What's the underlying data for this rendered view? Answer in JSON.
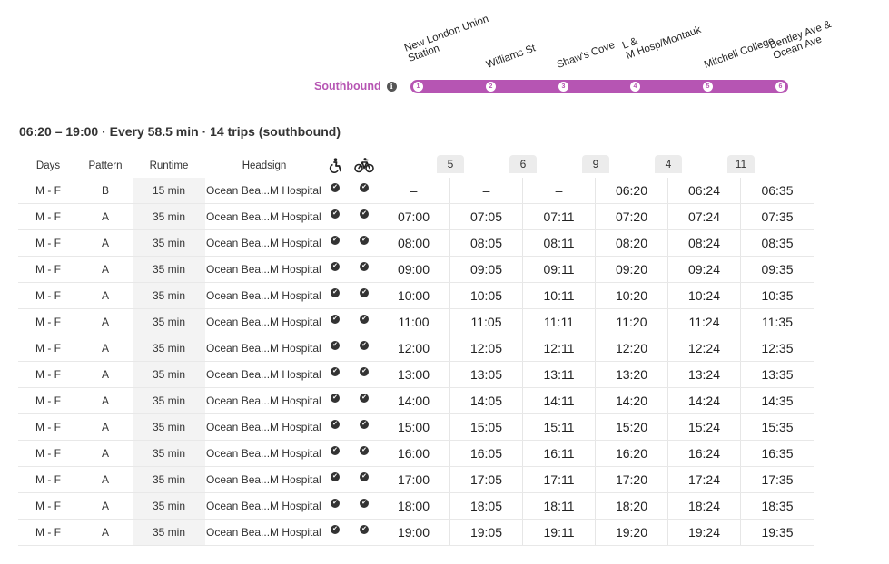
{
  "route": {
    "direction": "Southbound",
    "stops": [
      {
        "number": "1",
        "name_line1": "New London Union",
        "name_line2": "Station"
      },
      {
        "number": "2",
        "name_line1": "Williams St",
        "name_line2": ""
      },
      {
        "number": "3",
        "name_line1": "Shaw's Cove",
        "name_line2": ""
      },
      {
        "number": "4",
        "name_line1": "L &",
        "name_line2": "M Hosp/Montauk"
      },
      {
        "number": "5",
        "name_line1": "Mitchell College",
        "name_line2": ""
      },
      {
        "number": "6",
        "name_line1": "Bentley Ave &",
        "name_line2": "Ocean Ave"
      }
    ]
  },
  "summary": "06:20 – 19:00 · Every 58.5 min · 14 trips (southbound)",
  "table": {
    "headers": {
      "days": "Days",
      "pattern": "Pattern",
      "runtime": "Runtime",
      "headsign": "Headsign"
    },
    "stop_columns": [
      "",
      "5",
      "6",
      "9",
      "4",
      "11"
    ],
    "colors": {
      "accent": "#b655b3"
    },
    "rows": [
      {
        "days": "M - F",
        "pattern": "B",
        "runtime": "15 min",
        "headsign": "Ocean Bea...M Hospital",
        "times": [
          "–",
          "–",
          "–",
          "06:20",
          "06:24",
          "06:35"
        ]
      },
      {
        "days": "M - F",
        "pattern": "A",
        "runtime": "35 min",
        "headsign": "Ocean Bea...M Hospital",
        "times": [
          "07:00",
          "07:05",
          "07:11",
          "07:20",
          "07:24",
          "07:35"
        ]
      },
      {
        "days": "M - F",
        "pattern": "A",
        "runtime": "35 min",
        "headsign": "Ocean Bea...M Hospital",
        "times": [
          "08:00",
          "08:05",
          "08:11",
          "08:20",
          "08:24",
          "08:35"
        ]
      },
      {
        "days": "M - F",
        "pattern": "A",
        "runtime": "35 min",
        "headsign": "Ocean Bea...M Hospital",
        "times": [
          "09:00",
          "09:05",
          "09:11",
          "09:20",
          "09:24",
          "09:35"
        ]
      },
      {
        "days": "M - F",
        "pattern": "A",
        "runtime": "35 min",
        "headsign": "Ocean Bea...M Hospital",
        "times": [
          "10:00",
          "10:05",
          "10:11",
          "10:20",
          "10:24",
          "10:35"
        ]
      },
      {
        "days": "M - F",
        "pattern": "A",
        "runtime": "35 min",
        "headsign": "Ocean Bea...M Hospital",
        "times": [
          "11:00",
          "11:05",
          "11:11",
          "11:20",
          "11:24",
          "11:35"
        ]
      },
      {
        "days": "M - F",
        "pattern": "A",
        "runtime": "35 min",
        "headsign": "Ocean Bea...M Hospital",
        "times": [
          "12:00",
          "12:05",
          "12:11",
          "12:20",
          "12:24",
          "12:35"
        ]
      },
      {
        "days": "M - F",
        "pattern": "A",
        "runtime": "35 min",
        "headsign": "Ocean Bea...M Hospital",
        "times": [
          "13:00",
          "13:05",
          "13:11",
          "13:20",
          "13:24",
          "13:35"
        ]
      },
      {
        "days": "M - F",
        "pattern": "A",
        "runtime": "35 min",
        "headsign": "Ocean Bea...M Hospital",
        "times": [
          "14:00",
          "14:05",
          "14:11",
          "14:20",
          "14:24",
          "14:35"
        ]
      },
      {
        "days": "M - F",
        "pattern": "A",
        "runtime": "35 min",
        "headsign": "Ocean Bea...M Hospital",
        "times": [
          "15:00",
          "15:05",
          "15:11",
          "15:20",
          "15:24",
          "15:35"
        ]
      },
      {
        "days": "M - F",
        "pattern": "A",
        "runtime": "35 min",
        "headsign": "Ocean Bea...M Hospital",
        "times": [
          "16:00",
          "16:05",
          "16:11",
          "16:20",
          "16:24",
          "16:35"
        ]
      },
      {
        "days": "M - F",
        "pattern": "A",
        "runtime": "35 min",
        "headsign": "Ocean Bea...M Hospital",
        "times": [
          "17:00",
          "17:05",
          "17:11",
          "17:20",
          "17:24",
          "17:35"
        ]
      },
      {
        "days": "M - F",
        "pattern": "A",
        "runtime": "35 min",
        "headsign": "Ocean Bea...M Hospital",
        "times": [
          "18:00",
          "18:05",
          "18:11",
          "18:20",
          "18:24",
          "18:35"
        ]
      },
      {
        "days": "M - F",
        "pattern": "A",
        "runtime": "35 min",
        "headsign": "Ocean Bea...M Hospital",
        "times": [
          "19:00",
          "19:05",
          "19:11",
          "19:20",
          "19:24",
          "19:35"
        ]
      }
    ]
  },
  "icons": {
    "wheelchair": "wheelchair-icon",
    "bike": "bicycle-icon",
    "check": "check-circle-icon",
    "info": "info-icon"
  }
}
